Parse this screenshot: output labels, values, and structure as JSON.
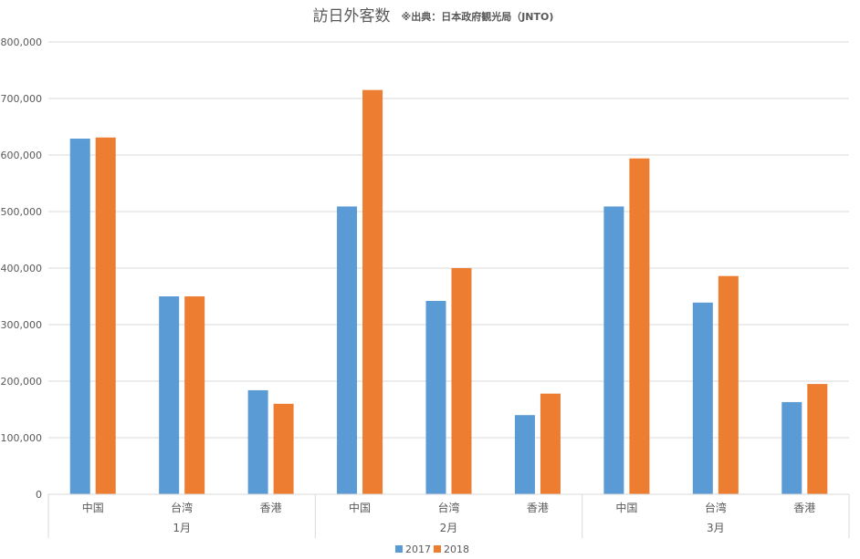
{
  "chart_data": {
    "type": "bar",
    "title": "訪日外客数",
    "subtitle": "※出典：日本政府観光局（JNTO)",
    "xlabel": "",
    "ylabel": "",
    "ylim": [
      0,
      800000
    ],
    "yticks": [
      0,
      100000,
      200000,
      300000,
      400000,
      500000,
      600000,
      700000,
      800000
    ],
    "ytick_labels": [
      "0",
      "100,000",
      "200,000",
      "300,000",
      "400,000",
      "500,000",
      "600,000",
      "700,000",
      "800,000"
    ],
    "grid": true,
    "legend_position": "bottom",
    "groups": [
      {
        "label": "1月",
        "categories": [
          "中国",
          "台湾",
          "香港"
        ]
      },
      {
        "label": "2月",
        "categories": [
          "中国",
          "台湾",
          "香港"
        ]
      },
      {
        "label": "3月",
        "categories": [
          "中国",
          "台湾",
          "香港"
        ]
      }
    ],
    "categories": [
      "中国",
      "台湾",
      "香港",
      "中国",
      "台湾",
      "香港",
      "中国",
      "台湾",
      "香港"
    ],
    "series": [
      {
        "name": "2017",
        "color": "#5b9bd5",
        "values": [
          629000,
          350000,
          184000,
          509000,
          342000,
          140000,
          509000,
          339000,
          163000
        ]
      },
      {
        "name": "2018",
        "color": "#ed7d31",
        "values": [
          631000,
          350000,
          160000,
          715000,
          400000,
          178000,
          594000,
          386000,
          195000
        ]
      }
    ]
  }
}
